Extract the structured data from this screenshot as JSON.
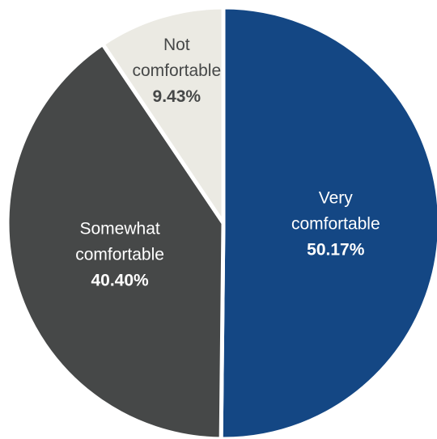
{
  "chart_data": {
    "type": "pie",
    "slices": [
      {
        "label_lines": [
          "Very",
          "comfortable"
        ],
        "value": 50.17,
        "value_label": "50.17%",
        "color": "#144784",
        "text_color": "#ffffff"
      },
      {
        "label_lines": [
          "Somewhat",
          "comfortable"
        ],
        "value": 40.4,
        "value_label": "40.40%",
        "color": "#464848",
        "text_color": "#ffffff"
      },
      {
        "label_lines": [
          "Not",
          "comfortable"
        ],
        "value": 9.43,
        "value_label": "9.43%",
        "color": "#ebeae3",
        "text_color": "#464848"
      }
    ],
    "start_angle_deg": 0,
    "direction": "clockwise",
    "legend": "none"
  }
}
